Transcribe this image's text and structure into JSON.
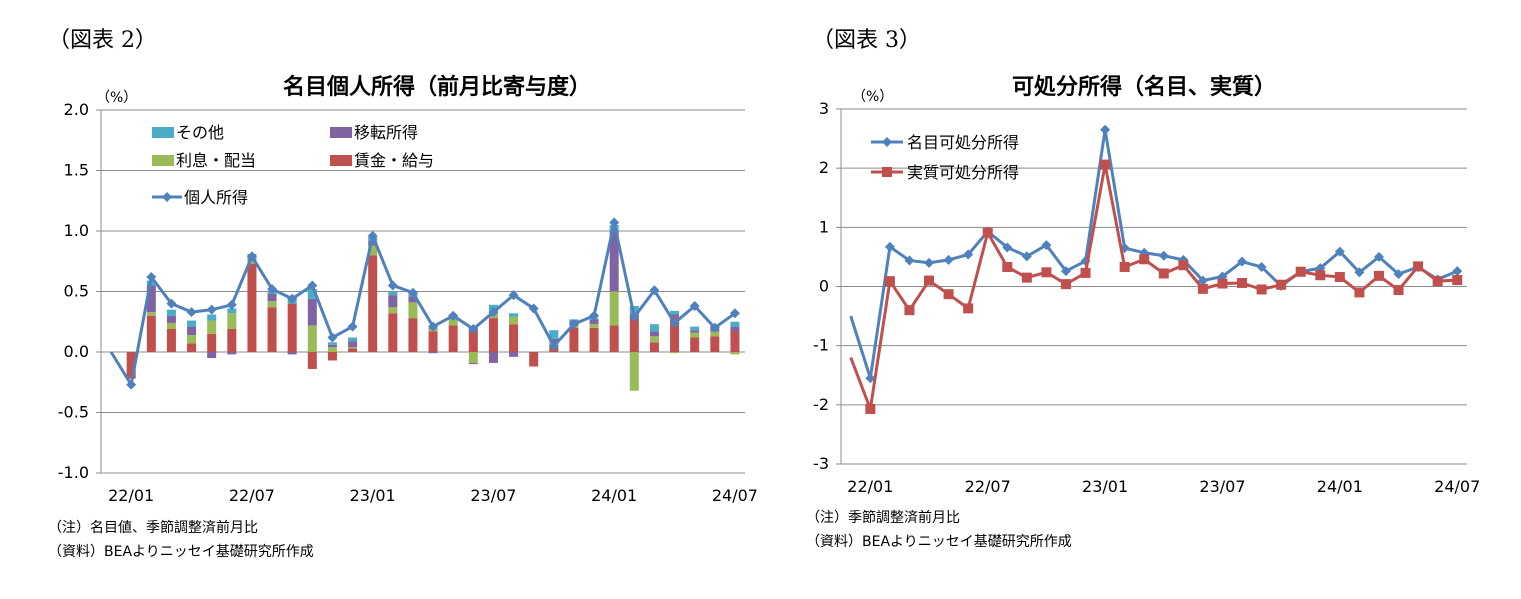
{
  "left": {
    "fig_label": "（図表 2）",
    "notes": [
      "（注）名目値、季節調整済前月比",
      "（資料）BEAよりニッセイ基礎研究所作成"
    ]
  },
  "right": {
    "fig_label": "（図表 3）",
    "notes": [
      "（注）季節調整済前月比",
      "（資料）BEAよりニッセイ基礎研究所作成"
    ]
  },
  "chart_data": [
    {
      "type": "bar",
      "title": "名目個人所得（前月比寄与度）",
      "unit_label": "（%）",
      "ylim": [
        -1.0,
        2.0
      ],
      "yticks": [
        "2.0",
        "1.5",
        "1.0",
        "0.5",
        "0.0",
        "-0.5",
        "-1.0"
      ],
      "grid": true,
      "legend_position": "top-left",
      "x_tick_labels": [
        "22/01",
        "22/07",
        "23/01",
        "23/07",
        "24/01",
        "24/07"
      ],
      "x": [
        "21/12",
        "22/01",
        "22/02",
        "22/03",
        "22/04",
        "22/05",
        "22/06",
        "22/07",
        "22/08",
        "22/09",
        "22/10",
        "22/11",
        "22/12",
        "23/01",
        "23/02",
        "23/03",
        "23/04",
        "23/05",
        "23/06",
        "23/07",
        "23/08",
        "23/09",
        "23/10",
        "23/11",
        "23/12",
        "24/01",
        "24/02",
        "24/03",
        "24/04",
        "24/05",
        "24/06",
        "24/07"
      ],
      "series": [
        {
          "name": "賃金・給与",
          "kind": "bar",
          "color": "#C0504D",
          "values": [
            0,
            -0.22,
            0.3,
            0.19,
            0.07,
            0.15,
            0.19,
            0.73,
            0.37,
            0.4,
            -0.14,
            -0.07,
            0.03,
            0.8,
            0.32,
            0.28,
            0.17,
            0.22,
            0.18,
            0.28,
            0.23,
            -0.12,
            0.05,
            0.2,
            0.2,
            0.22,
            0.28,
            0.08,
            0.29,
            0.12,
            0.13,
            0.17
          ]
        },
        {
          "name": "利息・配当",
          "kind": "bar",
          "color": "#9BBB59",
          "values": [
            0,
            0,
            0.03,
            0.05,
            0.07,
            0.11,
            0.13,
            0.03,
            0.05,
            0,
            0.22,
            0.04,
            0.01,
            0.08,
            0.05,
            0.13,
            0.02,
            0.05,
            -0.09,
            0.06,
            0.06,
            0,
            0.03,
            0.03,
            0.03,
            0.28,
            -0.32,
            0.05,
            -0.01,
            0.04,
            0.04,
            -0.02
          ]
        },
        {
          "name": "移転所得",
          "kind": "bar",
          "color": "#8064A2",
          "values": [
            0,
            0,
            0.22,
            0.06,
            0.07,
            -0.05,
            -0.02,
            0.01,
            0.06,
            -0.02,
            0.22,
            0.02,
            0.05,
            0.04,
            0.1,
            0.05,
            -0.01,
            0.02,
            -0.01,
            -0.09,
            -0.04,
            0,
            0.03,
            0.03,
            0.04,
            0.5,
            0.04,
            0.04,
            0.02,
            0.02,
            0.02,
            0.04
          ]
        },
        {
          "name": "その他",
          "kind": "bar",
          "color": "#4BACC6",
          "values": [
            0,
            0,
            0.04,
            0.05,
            0.05,
            0.05,
            0.04,
            0.04,
            0.02,
            0.05,
            0.08,
            0.02,
            0.03,
            0.03,
            0.03,
            0.04,
            0.01,
            0.02,
            0.03,
            0.05,
            0.03,
            0,
            0.07,
            0.01,
            0.01,
            0.05,
            0.06,
            0.06,
            0.03,
            0.03,
            0.03,
            0.04
          ]
        },
        {
          "name": "個人所得",
          "kind": "line",
          "color": "#4F81BD",
          "values": [
            0,
            -0.27,
            0.62,
            0.4,
            0.33,
            0.35,
            0.39,
            0.79,
            0.52,
            0.44,
            0.55,
            0.12,
            0.21,
            0.96,
            0.55,
            0.49,
            0.21,
            0.3,
            0.19,
            0.33,
            0.47,
            0.36,
            0.05,
            0.23,
            0.3,
            1.07,
            0.29,
            0.51,
            0.24,
            0.38,
            0.2,
            0.32
          ]
        }
      ]
    },
    {
      "type": "line",
      "title": "可処分所得（名目、実質）",
      "unit_label": "（%）",
      "ylim": [
        -3,
        3
      ],
      "yticks": [
        "3",
        "2",
        "1",
        "0",
        "-1",
        "-2",
        "-3"
      ],
      "grid": true,
      "legend_position": "top-left",
      "x_tick_labels": [
        "22/01",
        "22/07",
        "23/01",
        "23/07",
        "24/01",
        "24/07"
      ],
      "x": [
        "21/12",
        "22/01",
        "22/02",
        "22/03",
        "22/04",
        "22/05",
        "22/06",
        "22/07",
        "22/08",
        "22/09",
        "22/10",
        "22/11",
        "22/12",
        "23/01",
        "23/02",
        "23/03",
        "23/04",
        "23/05",
        "23/06",
        "23/07",
        "23/08",
        "23/09",
        "23/10",
        "23/11",
        "23/12",
        "24/01",
        "24/02",
        "24/03",
        "24/04",
        "24/05",
        "24/06",
        "24/07"
      ],
      "series": [
        {
          "name": "名目可処分所得",
          "color": "#4F81BD",
          "marker": "diamond",
          "values": [
            -0.5,
            -1.55,
            0.67,
            0.44,
            0.4,
            0.45,
            0.54,
            0.93,
            0.66,
            0.51,
            0.7,
            0.26,
            0.43,
            2.65,
            0.65,
            0.57,
            0.52,
            0.45,
            0.1,
            0.17,
            0.42,
            0.33,
            0.01,
            0.25,
            0.31,
            0.59,
            0.24,
            0.5,
            0.21,
            0.33,
            0.12,
            0.26
          ]
        },
        {
          "name": "実質可処分所得",
          "color": "#C0504D",
          "marker": "square",
          "values": [
            -1.2,
            -2.07,
            0.09,
            -0.4,
            0.1,
            -0.13,
            -0.37,
            0.91,
            0.33,
            0.15,
            0.24,
            0.04,
            0.23,
            2.06,
            0.33,
            0.46,
            0.22,
            0.36,
            -0.04,
            0.05,
            0.06,
            -0.05,
            0.03,
            0.25,
            0.19,
            0.16,
            -0.1,
            0.18,
            -0.06,
            0.34,
            0.09,
            0.11
          ]
        }
      ]
    }
  ]
}
